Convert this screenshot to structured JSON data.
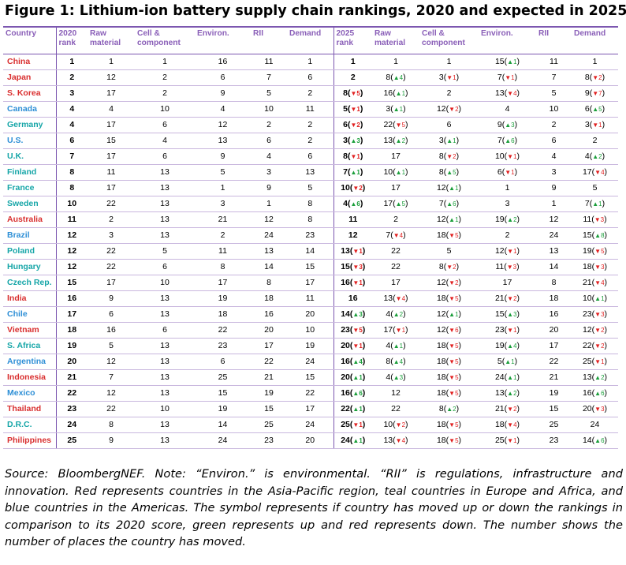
{
  "title": "Figure 1: Lithium-ion battery supply chain rankings, 2020 and expected in 2025",
  "headers": {
    "country": "Country",
    "rank2020": "2020 rank",
    "raw": "Raw material",
    "cell": "Cell & component",
    "env": "Environ.",
    "rii": "RII",
    "demand": "Demand",
    "rank2025": "2025 rank",
    "raw25": "Raw material",
    "cell25": "Cell & component",
    "env25": "Environ.",
    "rii25": "RII",
    "demand25": "Demand"
  },
  "region_colors": {
    "ap": "#d92f2f",
    "eu": "#17a6a8",
    "am": "#2e8fd6"
  },
  "rows": [
    {
      "country": "China",
      "region": "ap",
      "r20": "1",
      "raw": "1",
      "cell": "1",
      "env": "16",
      "rii": "11",
      "dem": "1",
      "r25": "1",
      "r25m": "",
      "raw25": "1",
      "raw25m": "",
      "cell25": "1",
      "cell25m": "",
      "env25": "15",
      "env25m": "▲1",
      "rii25": "11",
      "dem25": "1",
      "dem25m": ""
    },
    {
      "country": "Japan",
      "region": "ap",
      "r20": "2",
      "raw": "12",
      "cell": "2",
      "env": "6",
      "rii": "7",
      "dem": "6",
      "r25": "2",
      "r25m": "",
      "raw25": "8",
      "raw25m": "▲4",
      "cell25": "3",
      "cell25m": "▼1",
      "env25": "7",
      "env25m": "▼1",
      "rii25": "7",
      "dem25": "8",
      "dem25m": "▼2"
    },
    {
      "country": "S. Korea",
      "region": "ap",
      "r20": "3",
      "raw": "17",
      "cell": "2",
      "env": "9",
      "rii": "5",
      "dem": "2",
      "r25": "8",
      "r25m": "▼5",
      "raw25": "16",
      "raw25m": "▲1",
      "cell25": "2",
      "cell25m": "",
      "env25": "13",
      "env25m": "▼4",
      "rii25": "5",
      "dem25": "9",
      "dem25m": "▼7"
    },
    {
      "country": "Canada",
      "region": "am",
      "r20": "4",
      "raw": "4",
      "cell": "10",
      "env": "4",
      "rii": "10",
      "dem": "11",
      "r25": "5",
      "r25m": "▼1",
      "raw25": "3",
      "raw25m": "▲1",
      "cell25": "12",
      "cell25m": "▼2",
      "env25": "4",
      "env25m": "",
      "rii25": "10",
      "dem25": "6",
      "dem25m": "▲5"
    },
    {
      "country": "Germany",
      "region": "eu",
      "r20": "4",
      "raw": "17",
      "cell": "6",
      "env": "12",
      "rii": "2",
      "dem": "2",
      "r25": "6",
      "r25m": "▼2",
      "raw25": "22",
      "raw25m": "▼5",
      "cell25": "6",
      "cell25m": "",
      "env25": "9",
      "env25m": "▲3",
      "rii25": "2",
      "dem25": "3",
      "dem25m": "▼1"
    },
    {
      "country": "U.S.",
      "region": "am",
      "r20": "6",
      "raw": "15",
      "cell": "4",
      "env": "13",
      "rii": "6",
      "dem": "2",
      "r25": "3",
      "r25m": "▲3",
      "raw25": "13",
      "raw25m": "▲2",
      "cell25": "3",
      "cell25m": "▲1",
      "env25": "7",
      "env25m": "▲6",
      "rii25": "6",
      "dem25": "2",
      "dem25m": ""
    },
    {
      "country": "U.K.",
      "region": "eu",
      "r20": "7",
      "raw": "17",
      "cell": "6",
      "env": "9",
      "rii": "4",
      "dem": "6",
      "r25": "8",
      "r25m": "▼1",
      "raw25": "17",
      "raw25m": "",
      "cell25": "8",
      "cell25m": "▼2",
      "env25": "10",
      "env25m": "▼1",
      "rii25": "4",
      "dem25": "4",
      "dem25m": "▲2"
    },
    {
      "country": "Finland",
      "region": "eu",
      "r20": "8",
      "raw": "11",
      "cell": "13",
      "env": "5",
      "rii": "3",
      "dem": "13",
      "r25": "7",
      "r25m": "▲1",
      "raw25": "10",
      "raw25m": "▲1",
      "cell25": "8",
      "cell25m": "▲5",
      "env25": "6",
      "env25m": "▼1",
      "rii25": "3",
      "dem25": "17",
      "dem25m": "▼4"
    },
    {
      "country": "France",
      "region": "eu",
      "r20": "8",
      "raw": "17",
      "cell": "13",
      "env": "1",
      "rii": "9",
      "dem": "5",
      "r25": "10",
      "r25m": "▼2",
      "raw25": "17",
      "raw25m": "",
      "cell25": "12",
      "cell25m": "▲1",
      "env25": "1",
      "env25m": "",
      "rii25": "9",
      "dem25": "5",
      "dem25m": ""
    },
    {
      "country": "Sweden",
      "region": "eu",
      "r20": "10",
      "raw": "22",
      "cell": "13",
      "env": "3",
      "rii": "1",
      "dem": "8",
      "r25": "4",
      "r25m": "▲6",
      "raw25": "17",
      "raw25m": "▲5",
      "cell25": "7",
      "cell25m": "▲6",
      "env25": "3",
      "env25m": "",
      "rii25": "1",
      "dem25": "7",
      "dem25m": "▲1"
    },
    {
      "country": "Australia",
      "region": "ap",
      "r20": "11",
      "raw": "2",
      "cell": "13",
      "env": "21",
      "rii": "12",
      "dem": "8",
      "r25": "11",
      "r25m": "",
      "raw25": "2",
      "raw25m": "",
      "cell25": "12",
      "cell25m": "▲1",
      "env25": "19",
      "env25m": "▲2",
      "rii25": "12",
      "dem25": "11",
      "dem25m": "▼3"
    },
    {
      "country": "Brazil",
      "region": "am",
      "r20": "12",
      "raw": "3",
      "cell": "13",
      "env": "2",
      "rii": "24",
      "dem": "23",
      "r25": "12",
      "r25m": "",
      "raw25": "7",
      "raw25m": "▼4",
      "cell25": "18",
      "cell25m": "▼5",
      "env25": "2",
      "env25m": "",
      "rii25": "24",
      "dem25": "15",
      "dem25m": "▲8"
    },
    {
      "country": "Poland",
      "region": "eu",
      "r20": "12",
      "raw": "22",
      "cell": "5",
      "env": "11",
      "rii": "13",
      "dem": "14",
      "r25": "13",
      "r25m": "▼1",
      "raw25": "22",
      "raw25m": "",
      "cell25": "5",
      "cell25m": "",
      "env25": "12",
      "env25m": "▼1",
      "rii25": "13",
      "dem25": "19",
      "dem25m": "▼5"
    },
    {
      "country": "Hungary",
      "region": "eu",
      "r20": "12",
      "raw": "22",
      "cell": "6",
      "env": "8",
      "rii": "14",
      "dem": "15",
      "r25": "15",
      "r25m": "▼3",
      "raw25": "22",
      "raw25m": "",
      "cell25": "8",
      "cell25m": "▼2",
      "env25": "11",
      "env25m": "▼3",
      "rii25": "14",
      "dem25": "18",
      "dem25m": "▼3"
    },
    {
      "country": "Czech Rep.",
      "region": "eu",
      "r20": "15",
      "raw": "17",
      "cell": "10",
      "env": "17",
      "rii": "8",
      "dem": "17",
      "r25": "16",
      "r25m": "▼1",
      "raw25": "17",
      "raw25m": "",
      "cell25": "12",
      "cell25m": "▼2",
      "env25": "17",
      "env25m": "",
      "rii25": "8",
      "dem25": "21",
      "dem25m": "▼4"
    },
    {
      "country": "India",
      "region": "ap",
      "r20": "16",
      "raw": "9",
      "cell": "13",
      "env": "19",
      "rii": "18",
      "dem": "11",
      "r25": "16",
      "r25m": "",
      "raw25": "13",
      "raw25m": "▼4",
      "cell25": "18",
      "cell25m": "▼5",
      "env25": "21",
      "env25m": "▼2",
      "rii25": "18",
      "dem25": "10",
      "dem25m": "▲1"
    },
    {
      "country": "Chile",
      "region": "am",
      "r20": "17",
      "raw": "6",
      "cell": "13",
      "env": "18",
      "rii": "16",
      "dem": "20",
      "r25": "14",
      "r25m": "▲3",
      "raw25": "4",
      "raw25m": "▲2",
      "cell25": "12",
      "cell25m": "▲1",
      "env25": "15",
      "env25m": "▲3",
      "rii25": "16",
      "dem25": "23",
      "dem25m": "▼3"
    },
    {
      "country": "Vietnam",
      "region": "ap",
      "r20": "18",
      "raw": "16",
      "cell": "6",
      "env": "22",
      "rii": "20",
      "dem": "10",
      "r25": "23",
      "r25m": "▼5",
      "raw25": "17",
      "raw25m": "▼1",
      "cell25": "12",
      "cell25m": "▼6",
      "env25": "23",
      "env25m": "▼1",
      "rii25": "20",
      "dem25": "12",
      "dem25m": "▼2"
    },
    {
      "country": "S. Africa",
      "region": "eu",
      "r20": "19",
      "raw": "5",
      "cell": "13",
      "env": "23",
      "rii": "17",
      "dem": "19",
      "r25": "20",
      "r25m": "▼1",
      "raw25": "4",
      "raw25m": "▲1",
      "cell25": "18",
      "cell25m": "▼5",
      "env25": "19",
      "env25m": "▲4",
      "rii25": "17",
      "dem25": "22",
      "dem25m": "▼2"
    },
    {
      "country": "Argentina",
      "region": "am",
      "r20": "20",
      "raw": "12",
      "cell": "13",
      "env": "6",
      "rii": "22",
      "dem": "24",
      "r25": "16",
      "r25m": "▲4",
      "raw25": "8",
      "raw25m": "▲4",
      "cell25": "18",
      "cell25m": "▼5",
      "env25": "5",
      "env25m": "▲1",
      "rii25": "22",
      "dem25": "25",
      "dem25m": "▼1"
    },
    {
      "country": "Indonesia",
      "region": "ap",
      "r20": "21",
      "raw": "7",
      "cell": "13",
      "env": "25",
      "rii": "21",
      "dem": "15",
      "r25": "20",
      "r25m": "▲1",
      "raw25": "4",
      "raw25m": "▲3",
      "cell25": "18",
      "cell25m": "▼5",
      "env25": "24",
      "env25m": "▲1",
      "rii25": "21",
      "dem25": "13",
      "dem25m": "▲2"
    },
    {
      "country": "Mexico",
      "region": "am",
      "r20": "22",
      "raw": "12",
      "cell": "13",
      "env": "15",
      "rii": "19",
      "dem": "22",
      "r25": "16",
      "r25m": "▲6",
      "raw25": "12",
      "raw25m": "",
      "cell25": "18",
      "cell25m": "▼5",
      "env25": "13",
      "env25m": "▲2",
      "rii25": "19",
      "dem25": "16",
      "dem25m": "▲6"
    },
    {
      "country": "Thailand",
      "region": "ap",
      "r20": "23",
      "raw": "22",
      "cell": "10",
      "env": "19",
      "rii": "15",
      "dem": "17",
      "r25": "22",
      "r25m": "▲1",
      "raw25": "22",
      "raw25m": "",
      "cell25": "8",
      "cell25m": "▲2",
      "env25": "21",
      "env25m": "▼2",
      "rii25": "15",
      "dem25": "20",
      "dem25m": "▼3"
    },
    {
      "country": "D.R.C.",
      "region": "eu",
      "r20": "24",
      "raw": "8",
      "cell": "13",
      "env": "14",
      "rii": "25",
      "dem": "24",
      "r25": "25",
      "r25m": "▼1",
      "raw25": "10",
      "raw25m": "▼2",
      "cell25": "18",
      "cell25m": "▼5",
      "env25": "18",
      "env25m": "▼4",
      "rii25": "25",
      "dem25": "24",
      "dem25m": ""
    },
    {
      "country": "Philippines",
      "region": "ap",
      "r20": "25",
      "raw": "9",
      "cell": "13",
      "env": "24",
      "rii": "23",
      "dem": "20",
      "r25": "24",
      "r25m": "▲1",
      "raw25": "13",
      "raw25m": "▼4",
      "cell25": "18",
      "cell25m": "▼5",
      "env25": "25",
      "env25m": "▼1",
      "rii25": "23",
      "dem25": "14",
      "dem25m": "▲6"
    }
  ],
  "footnote": "Source: BloombergNEF. Note: “Environ.” is environmental. “RII” is regulations, infrastructure and innovation. Red represents countries in the Asia-Pacific region, teal countries in Europe and Africa, and blue countries in the Americas. The symbol represents if country has moved up or down the rankings in comparison to its 2020 score, green represents up and red represents down. The number shows the number of places the country has moved."
}
